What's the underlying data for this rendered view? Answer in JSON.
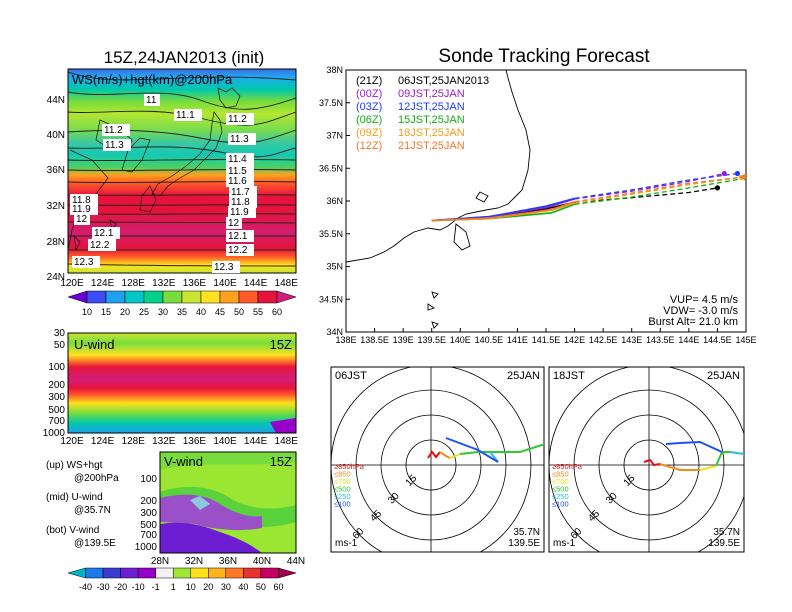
{
  "header": {
    "left_title": "15Z,24JAN2013 (init)",
    "right_title": "Sonde Tracking Forecast"
  },
  "map_panel": {
    "subtitle": "WS(m/s)+hgt(km)@200hPa",
    "lon_ticks": [
      "120E",
      "124E",
      "128E",
      "132E",
      "136E",
      "140E",
      "144E",
      "148E"
    ],
    "lat_ticks": [
      "44N",
      "40N",
      "36N",
      "32N",
      "28N",
      "24N"
    ],
    "contour_labels": [
      "11",
      "11.1",
      "11.2",
      "11.2",
      "11.3",
      "11.3",
      "11.4",
      "11.5",
      "11.6",
      "11.7",
      "11.8",
      "11.9",
      "11.8",
      "11.9",
      "12",
      "12",
      "12.1",
      "12.1",
      "12.2",
      "12.2",
      "12.3",
      "12.3"
    ],
    "colorbar_labels": [
      "10",
      "15",
      "20",
      "25",
      "30",
      "35",
      "40",
      "45",
      "50",
      "55",
      "60"
    ],
    "colorbar_colors": [
      "#6a00d8",
      "#3c4cf0",
      "#1ea0f0",
      "#00c8c8",
      "#00d28c",
      "#78dc3c",
      "#c8e632",
      "#ffe11e",
      "#ffa01e",
      "#ff5a28",
      "#e6143c",
      "#d21e7a"
    ]
  },
  "uwind_panel": {
    "label": "U-wind",
    "time": "15Z",
    "y_ticks": [
      "30",
      "50",
      "100",
      "200",
      "300",
      "500",
      "700",
      "1000"
    ],
    "x_ticks": [
      "120E",
      "124E",
      "128E",
      "132E",
      "136E",
      "140E",
      "144E",
      "148E"
    ]
  },
  "vwind_panel": {
    "label": "V-wind",
    "time": "15Z",
    "y_ticks": [
      "100",
      "200",
      "300",
      "500",
      "700",
      "1000"
    ],
    "x_ticks": [
      "28N",
      "32N",
      "36N",
      "40N",
      "44N"
    ],
    "colorbar_labels": [
      "-40",
      "-30",
      "-20",
      "-10",
      "-1",
      "1",
      "10",
      "20",
      "30",
      "40",
      "50",
      "60"
    ],
    "colorbar_colors": [
      "#00b4c8",
      "#1e78e6",
      "#3c3cd2",
      "#6e1ed2",
      "#9600c8",
      "#f0f0f0",
      "#a0e632",
      "#ffe11e",
      "#ffb41e",
      "#ff7828",
      "#e63232",
      "#c80064",
      "#a00050"
    ]
  },
  "legend_notes": {
    "top": "(up) WS+hgt",
    "top2": "@200hPa",
    "mid": "(mid) U-wind",
    "mid2": "@35.7N",
    "bot": "(bot) V-wind",
    "bot2": "@139.5E"
  },
  "tracking_panel": {
    "lon_ticks": [
      "138E",
      "138.5E",
      "139E",
      "139.5E",
      "140E",
      "140.5E",
      "141E",
      "141.5E",
      "142E",
      "142.5E",
      "143E",
      "143.5E",
      "144E",
      "144.5E",
      "145E"
    ],
    "lat_ticks": [
      "38N",
      "37.5N",
      "37N",
      "36.5N",
      "36N",
      "35.5N",
      "35N",
      "34.5N",
      "34N"
    ],
    "legend": [
      {
        "utc": "(21Z)",
        "jst": "06JST,25JAN2013",
        "color": "#000000"
      },
      {
        "utc": "(00Z)",
        "jst": "09JST,25JAN",
        "color": "#a020c8"
      },
      {
        "utc": "(03Z)",
        "jst": "12JST,25JAN",
        "color": "#1e3cff"
      },
      {
        "utc": "(06Z)",
        "jst": "15JST,25JAN",
        "color": "#10b010"
      },
      {
        "utc": "(09Z)",
        "jst": "18JST,25JAN",
        "color": "#f0a020"
      },
      {
        "utc": "(12Z)",
        "jst": "21JST,25JAN",
        "color": "#f07830"
      }
    ],
    "params": [
      "VUP= 4.5 m/s",
      "VDW= -3.0 m/s",
      "Burst Alt= 21.0 km"
    ]
  },
  "hodographs": [
    {
      "time": "06JST",
      "date": "25JAN",
      "lat": "35.7N",
      "lon": "139.5E",
      "unit": "ms-1"
    },
    {
      "time": "18JST",
      "date": "25JAN",
      "lat": "35.7N",
      "lon": "139.5E",
      "unit": "ms-1"
    }
  ],
  "hodo_ring_labels": [
    "15",
    "30",
    "45",
    "60"
  ],
  "hodo_levels": [
    {
      "label": "≥850hPa",
      "color": "#e01010"
    },
    {
      "label": "≤850",
      "color": "#f08c1e"
    },
    {
      "label": "≤700",
      "color": "#e6e61e"
    },
    {
      "label": "≤500",
      "color": "#32c832"
    },
    {
      "label": "≤250",
      "color": "#1ebede"
    },
    {
      "label": "≤100",
      "color": "#1e50ff"
    }
  ],
  "chart_data": [
    {
      "type": "heatmap",
      "title": "15Z,24JAN2013 (init)",
      "subtitle": "WS(m/s)+hgt(km)@200hPa",
      "xlim": [
        120,
        150
      ],
      "ylim": [
        22,
        47
      ],
      "contour_hgt_km": [
        11,
        11.1,
        11.2,
        11.3,
        11.4,
        11.5,
        11.6,
        11.7,
        11.8,
        11.9,
        12,
        12.1,
        12.2,
        12.3
      ]
    },
    {
      "type": "line",
      "title": "Sonde Tracking Forecast",
      "xlim": [
        138,
        145
      ],
      "ylim": [
        34,
        38
      ],
      "series": [
        {
          "name": "(21Z) 06JST,25JAN2013",
          "color": "#000000",
          "x": [
            139.5,
            140.5,
            141.5,
            142.0,
            143.0,
            144.0,
            144.5
          ],
          "y": [
            35.7,
            35.75,
            35.88,
            35.98,
            36.05,
            36.13,
            36.2
          ]
        },
        {
          "name": "(00Z) 09JST,25JAN",
          "color": "#a020c8",
          "x": [
            139.5,
            140.5,
            141.5,
            142.0,
            143.0,
            144.0,
            144.62
          ],
          "y": [
            35.7,
            35.76,
            35.9,
            36.03,
            36.15,
            36.3,
            36.42
          ]
        },
        {
          "name": "(03Z) 12JST,25JAN",
          "color": "#1e3cff",
          "x": [
            139.5,
            140.5,
            141.5,
            142.0,
            143.0,
            144.0,
            144.85
          ],
          "y": [
            35.7,
            35.76,
            35.92,
            36.04,
            36.17,
            36.32,
            36.42
          ]
        },
        {
          "name": "(06Z) 15JST,25JAN",
          "color": "#10b010",
          "x": [
            139.5,
            140.5,
            141.6,
            142.0,
            143.0,
            144.0,
            145.0
          ],
          "y": [
            35.7,
            35.73,
            35.82,
            35.95,
            36.06,
            36.2,
            36.35
          ]
        },
        {
          "name": "(09Z) 18JST,25JAN",
          "color": "#f0a020",
          "x": [
            139.5,
            140.5,
            141.6,
            142.0,
            143.0,
            144.0,
            144.92
          ],
          "y": [
            35.7,
            35.73,
            35.86,
            35.97,
            36.1,
            36.25,
            36.36
          ]
        },
        {
          "name": "(12Z) 21JST,25JAN",
          "color": "#f07830",
          "x": [
            139.5,
            140.5,
            141.6,
            142.0,
            143.0,
            144.0,
            144.98
          ],
          "y": [
            35.7,
            35.74,
            35.87,
            35.99,
            36.12,
            36.27,
            36.37
          ]
        }
      ],
      "annotations": [
        "VUP= 4.5 m/s",
        "VDW= -3.0 m/s",
        "Burst Alt= 21.0 km"
      ]
    }
  ]
}
